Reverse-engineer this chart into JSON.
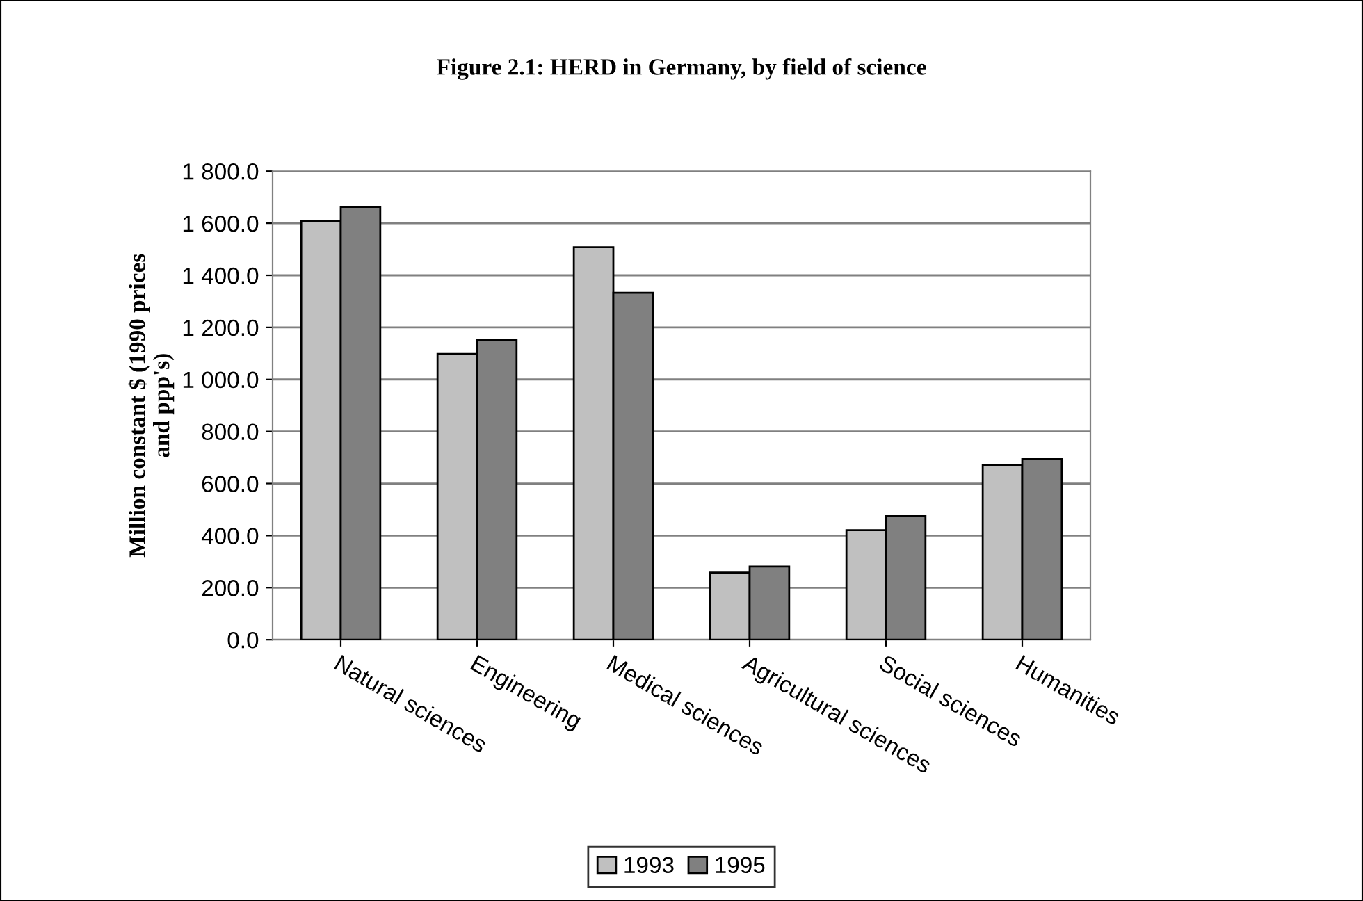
{
  "chart_data": {
    "type": "bar",
    "title": "Figure 2.1: HERD in Germany, by field of science",
    "ylabel": "Million constant $ (1990 prices\nand ppp's)",
    "categories": [
      "Natural sciences",
      "Engineering",
      "Medical sciences",
      "Agricultural sciences",
      "Social sciences",
      "Humanities"
    ],
    "series": [
      {
        "name": "1993",
        "color": "#c0c0c0",
        "values": [
          1608,
          1098,
          1508,
          258,
          421,
          671
        ]
      },
      {
        "name": "1995",
        "color": "#808080",
        "values": [
          1663,
          1152,
          1333,
          281,
          475,
          694
        ]
      }
    ],
    "ylim": [
      0,
      1800
    ],
    "yticks": [
      {
        "value": 0,
        "label": "0.0"
      },
      {
        "value": 200,
        "label": "200.0"
      },
      {
        "value": 400,
        "label": "400.0"
      },
      {
        "value": 600,
        "label": "600.0"
      },
      {
        "value": 800,
        "label": "800.0"
      },
      {
        "value": 1000,
        "label": "1 000.0"
      },
      {
        "value": 1200,
        "label": "1 200.0"
      },
      {
        "value": 1400,
        "label": "1 400.0"
      },
      {
        "value": 1600,
        "label": "1 600.0"
      },
      {
        "value": 1800,
        "label": "1 800.0"
      }
    ],
    "grid": "y",
    "legend": "bottom"
  }
}
